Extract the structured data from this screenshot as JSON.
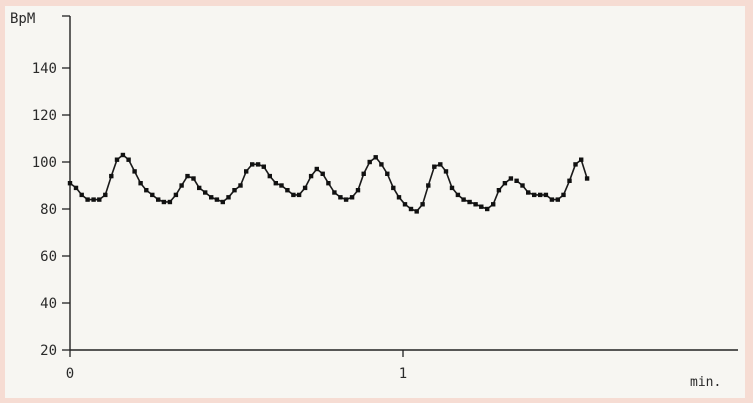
{
  "chart_data": {
    "type": "line",
    "ylabel": "BpM",
    "xlabel": "min.",
    "ylim": [
      20,
      150
    ],
    "xlim": [
      0,
      2.0
    ],
    "y_ticks": [
      20,
      40,
      60,
      80,
      100,
      120,
      140
    ],
    "x_ticks": [
      0,
      1
    ],
    "grid": false,
    "series": [
      {
        "x": [
          0.0,
          0.018,
          0.035,
          0.053,
          0.071,
          0.088,
          0.106,
          0.124,
          0.141,
          0.159,
          0.176,
          0.194,
          0.212,
          0.229,
          0.247,
          0.265,
          0.282,
          0.3,
          0.318,
          0.335,
          0.353,
          0.371,
          0.388,
          0.406,
          0.424,
          0.441,
          0.459,
          0.476,
          0.494,
          0.512,
          0.529,
          0.547,
          0.565,
          0.582,
          0.6,
          0.618,
          0.635,
          0.653,
          0.671,
          0.688,
          0.706,
          0.724,
          0.741,
          0.759,
          0.776,
          0.794,
          0.812,
          0.829,
          0.847,
          0.865,
          0.882,
          0.9,
          0.918,
          0.935,
          0.953,
          0.971,
          0.988,
          1.006,
          1.024,
          1.041,
          1.059,
          1.076,
          1.094,
          1.112,
          1.129,
          1.147,
          1.165,
          1.182,
          1.2,
          1.218,
          1.235,
          1.253,
          1.271,
          1.288,
          1.306,
          1.324
        ],
        "y": [
          91,
          89,
          86,
          84,
          84,
          84,
          86,
          94,
          101,
          103,
          101,
          96,
          91,
          88,
          86,
          84,
          83,
          83,
          86,
          90,
          94,
          93,
          89,
          87,
          85,
          84,
          83,
          85,
          88,
          90,
          96,
          99,
          99,
          98,
          94,
          91,
          90,
          88,
          86,
          86,
          89,
          94,
          97,
          95,
          91,
          87,
          85,
          84,
          85,
          88,
          95,
          100,
          102,
          99,
          95,
          89,
          85,
          82,
          80,
          79,
          82,
          90,
          98,
          99,
          96,
          89,
          86,
          84,
          83,
          82,
          81,
          80,
          82,
          88,
          91,
          93
        ]
      },
      {
        "x": [
          1.341,
          1.359,
          1.376,
          1.394,
          1.412,
          1.429,
          1.447,
          1.465,
          1.482,
          1.5,
          1.518,
          1.535,
          1.553
        ],
        "y": [
          92,
          90,
          87,
          86,
          86,
          86,
          84,
          84,
          86,
          92,
          99,
          101,
          93
        ]
      }
    ]
  }
}
